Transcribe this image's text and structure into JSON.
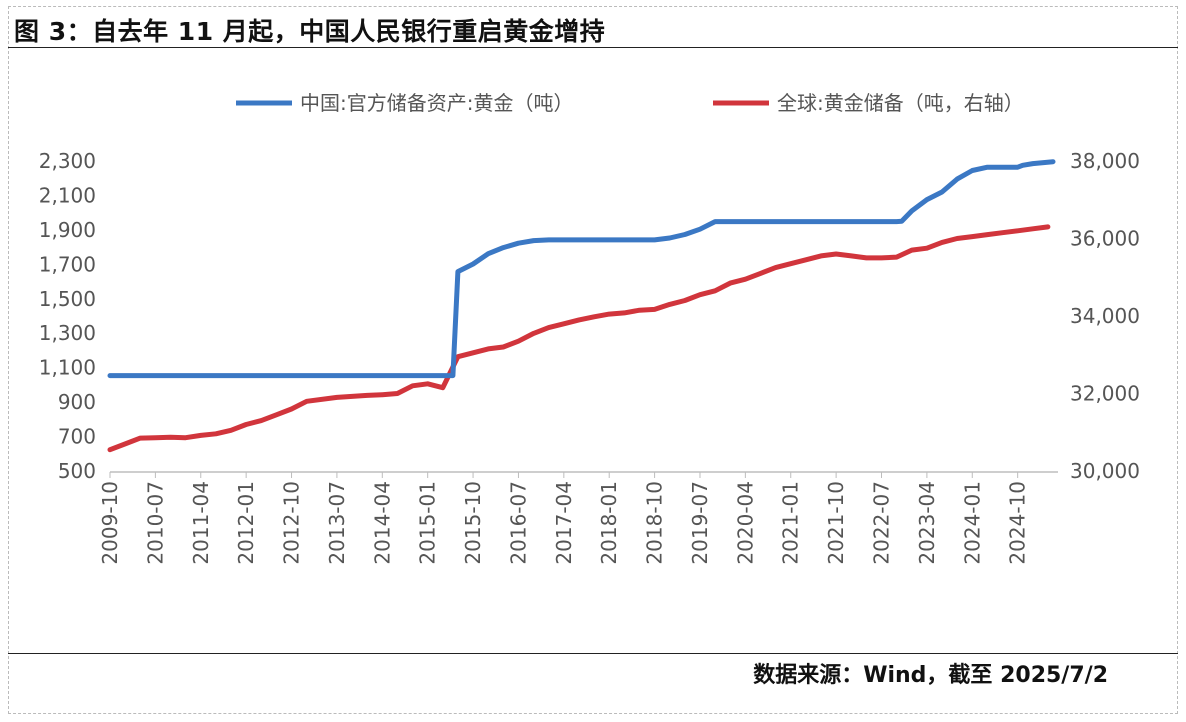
{
  "title": "图 3：自去年 11 月起，中国人民银行重启黄金增持",
  "source": "数据来源：Wind，截至 2025/7/2",
  "chart_data": {
    "type": "line",
    "y_left": {
      "lim": [
        500,
        2300
      ],
      "ticks": [
        "500",
        "700",
        "900",
        "1,100",
        "1,300",
        "1,500",
        "1,700",
        "1,900",
        "2,100",
        "2,300"
      ]
    },
    "y_right": {
      "lim": [
        30000,
        38000
      ],
      "ticks": [
        "30,000",
        "32,000",
        "34,000",
        "36,000",
        "38,000"
      ]
    },
    "x_ticks": [
      "2009-10",
      "2010-07",
      "2011-04",
      "2012-01",
      "2012-10",
      "2013-07",
      "2014-04",
      "2015-01",
      "2015-10",
      "2016-07",
      "2017-04",
      "2018-01",
      "2018-10",
      "2019-07",
      "2020-04",
      "2021-01",
      "2021-10",
      "2022-07",
      "2023-04",
      "2024-01",
      "2024-10"
    ],
    "series": [
      {
        "name": "中国:官方储备资产:黄金（吨）",
        "axis": "left",
        "color": "#3b78c4",
        "points": [
          [
            "2009-10",
            1054
          ],
          [
            "2015-06",
            1054
          ],
          [
            "2015-07",
            1658
          ],
          [
            "2015-10",
            1702
          ],
          [
            "2016-01",
            1762
          ],
          [
            "2016-04",
            1797
          ],
          [
            "2016-07",
            1823
          ],
          [
            "2016-10",
            1838
          ],
          [
            "2017-01",
            1842
          ],
          [
            "2018-01",
            1842
          ],
          [
            "2018-10",
            1842
          ],
          [
            "2019-01",
            1853
          ],
          [
            "2019-04",
            1873
          ],
          [
            "2019-07",
            1904
          ],
          [
            "2019-10",
            1948
          ],
          [
            "2020-04",
            1948
          ],
          [
            "2021-01",
            1948
          ],
          [
            "2021-10",
            1948
          ],
          [
            "2022-10",
            1948
          ],
          [
            "2022-11",
            1950
          ],
          [
            "2023-01",
            2010
          ],
          [
            "2023-04",
            2076
          ],
          [
            "2023-07",
            2120
          ],
          [
            "2023-10",
            2195
          ],
          [
            "2024-01",
            2245
          ],
          [
            "2024-04",
            2264
          ],
          [
            "2024-10",
            2264
          ],
          [
            "2024-11",
            2275
          ],
          [
            "2025-01",
            2285
          ],
          [
            "2025-05",
            2296
          ]
        ]
      },
      {
        "name": "全球:黄金储备（吨，右轴）",
        "axis": "right",
        "color": "#d1353c",
        "points": [
          [
            "2009-10",
            30550
          ],
          [
            "2010-04",
            30850
          ],
          [
            "2010-07",
            30860
          ],
          [
            "2010-10",
            30870
          ],
          [
            "2011-01",
            30860
          ],
          [
            "2011-04",
            30920
          ],
          [
            "2011-07",
            30960
          ],
          [
            "2011-10",
            31050
          ],
          [
            "2012-01",
            31200
          ],
          [
            "2012-04",
            31300
          ],
          [
            "2012-07",
            31450
          ],
          [
            "2012-10",
            31600
          ],
          [
            "2013-01",
            31800
          ],
          [
            "2013-07",
            31900
          ],
          [
            "2014-01",
            31950
          ],
          [
            "2014-04",
            31970
          ],
          [
            "2014-07",
            32000
          ],
          [
            "2014-10",
            32200
          ],
          [
            "2015-01",
            32250
          ],
          [
            "2015-04",
            32150
          ],
          [
            "2015-07",
            32950
          ],
          [
            "2015-10",
            33050
          ],
          [
            "2016-01",
            33150
          ],
          [
            "2016-04",
            33200
          ],
          [
            "2016-07",
            33350
          ],
          [
            "2016-10",
            33550
          ],
          [
            "2017-01",
            33700
          ],
          [
            "2017-04",
            33800
          ],
          [
            "2017-07",
            33900
          ],
          [
            "2017-10",
            33980
          ],
          [
            "2018-01",
            34050
          ],
          [
            "2018-04",
            34080
          ],
          [
            "2018-07",
            34150
          ],
          [
            "2018-10",
            34170
          ],
          [
            "2019-01",
            34300
          ],
          [
            "2019-04",
            34400
          ],
          [
            "2019-07",
            34550
          ],
          [
            "2019-10",
            34650
          ],
          [
            "2020-01",
            34850
          ],
          [
            "2020-04",
            34950
          ],
          [
            "2020-07",
            35100
          ],
          [
            "2020-10",
            35250
          ],
          [
            "2021-01",
            35350
          ],
          [
            "2021-04",
            35450
          ],
          [
            "2021-07",
            35550
          ],
          [
            "2021-10",
            35600
          ],
          [
            "2022-01",
            35550
          ],
          [
            "2022-04",
            35500
          ],
          [
            "2022-07",
            35500
          ],
          [
            "2022-10",
            35520
          ],
          [
            "2023-01",
            35700
          ],
          [
            "2023-04",
            35750
          ],
          [
            "2023-07",
            35900
          ],
          [
            "2023-10",
            36000
          ],
          [
            "2024-01",
            36050
          ],
          [
            "2024-04",
            36100
          ],
          [
            "2024-07",
            36150
          ],
          [
            "2024-10",
            36200
          ],
          [
            "2025-01",
            36250
          ],
          [
            "2025-04",
            36300
          ]
        ]
      }
    ]
  }
}
